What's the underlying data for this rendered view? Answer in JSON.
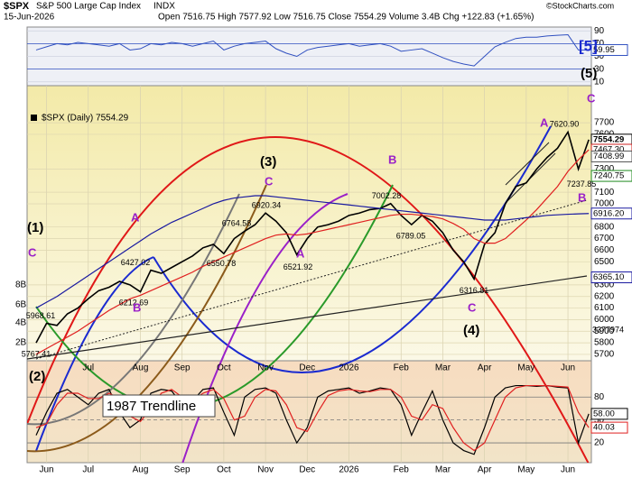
{
  "header": {
    "symbol": "$SPX",
    "name": "S&P 500 Large Cap Index",
    "exchange": "INDX",
    "date": "15-Jun-2026",
    "quote": "Open 7516.75 High 7577.92 Low 7516.75 Close 7554.29 Volume 3.4B Chg +122.83 (+1.65%)",
    "credit": "©StockCharts.com"
  },
  "chart_data": {
    "type": "line",
    "legend": "$SPX (Daily) 7554.29",
    "series": [
      {
        "color": "#000000",
        "values": [
          5800,
          5968,
          5950,
          6050,
          6100,
          6180,
          6250,
          6280,
          6330,
          6300,
          6240,
          6427,
          6400,
          6450,
          6500,
          6550,
          6620,
          6650,
          6570,
          6700,
          6764,
          6820,
          6920,
          6850,
          6750,
          6560,
          6700,
          6800,
          6820,
          6850,
          6900,
          6920,
          6950,
          6960,
          7002,
          6900,
          6820,
          6900,
          6850,
          6750,
          6600,
          6500,
          6350,
          6650,
          6750,
          7000,
          7150,
          7180,
          7300,
          7400,
          7480,
          7620,
          7300,
          7554
        ]
      },
      {
        "color": "#e02020",
        "values": [
          5700,
          5750,
          5800,
          5850,
          5900,
          5960,
          6020,
          6080,
          6130,
          6180,
          6210,
          6250,
          6290,
          6330,
          6370,
          6410,
          6460,
          6500,
          6540,
          6580,
          6620,
          6660,
          6700,
          6730,
          6740,
          6730,
          6740,
          6760,
          6780,
          6800,
          6820,
          6840,
          6860,
          6880,
          6900,
          6910,
          6910,
          6900,
          6890,
          6870,
          6830,
          6780,
          6700,
          6660,
          6660,
          6700,
          6780,
          6860,
          6950,
          7050,
          7150,
          7280,
          7380,
          7467
        ]
      },
      {
        "color": "#1a1aa0",
        "values": [
          6100,
          6150,
          6200,
          6260,
          6320,
          6380,
          6440,
          6500,
          6560,
          6620,
          6680,
          6740,
          6790,
          6840,
          6880,
          6920,
          6960,
          7000,
          7030,
          7050,
          7060,
          7070,
          7070,
          7060,
          7050,
          7040,
          7030,
          7020,
          7010,
          7000,
          6990,
          6980,
          6970,
          6960,
          6950,
          6940,
          6930,
          6920,
          6910,
          6900,
          6890,
          6880,
          6870,
          6860,
          6860,
          6860,
          6870,
          6880,
          6890,
          6900,
          6905,
          6910,
          6913,
          6916
        ]
      }
    ],
    "ylim": [
      5645,
      8020
    ],
    "yticks": [
      5700,
      5800,
      5900,
      6000,
      6100,
      6200,
      6300,
      6500,
      6600,
      6700,
      6800,
      7000,
      7100,
      7300,
      7600,
      7700
    ],
    "xticks": [
      {
        "value": 1,
        "label": "Jun"
      },
      {
        "value": 5,
        "label": "Jul"
      },
      {
        "value": 10,
        "label": "Aug"
      },
      {
        "value": 14,
        "label": "Sep"
      },
      {
        "value": 18,
        "label": "Oct"
      },
      {
        "value": 22,
        "label": "Nov"
      },
      {
        "value": 26,
        "label": "Dec"
      },
      {
        "value": 30,
        "label": "2026"
      },
      {
        "value": 35,
        "label": "Feb"
      },
      {
        "value": 39,
        "label": "Mar"
      },
      {
        "value": 43,
        "label": "Apr"
      },
      {
        "value": 47,
        "label": "May"
      },
      {
        "value": 51,
        "label": "Jun"
      }
    ],
    "grid": true,
    "price_labels": [
      {
        "value": 5767.41,
        "label": "5767.41"
      },
      {
        "value": 5968.61,
        "label": "5968.61"
      },
      {
        "value": 6427.02,
        "label": "6427.02"
      },
      {
        "value": 6212.69,
        "label": "6212.69"
      },
      {
        "value": 6764.58,
        "label": "6764.58"
      },
      {
        "value": 6550.78,
        "label": "6550.78"
      },
      {
        "value": 6920.34,
        "label": "6920.34"
      },
      {
        "value": 6521.92,
        "label": "6521.92"
      },
      {
        "value": 7002.28,
        "label": "7002.28"
      },
      {
        "value": 6789.05,
        "label": "6789.05"
      },
      {
        "value": 6316.81,
        "label": "6316.81"
      },
      {
        "value": 7620.9,
        "label": "7620.90"
      },
      {
        "value": 7237.85,
        "label": "7237.85"
      }
    ],
    "value_tags": [
      {
        "value": 7554.29,
        "label": "7554.29",
        "color": "#000000"
      },
      {
        "value": 7467.3,
        "label": "7467.30",
        "color": "#d02020"
      },
      {
        "value": 7408.99,
        "label": "7408.99",
        "color": "#555555"
      },
      {
        "value": 7240.75,
        "label": "7240.75",
        "color": "#1e8a1e"
      },
      {
        "value": 6916.2,
        "label": "6916.20",
        "color": "#1a1aa0"
      },
      {
        "value": 6365.1,
        "label": "6365.10",
        "color": "#1a1aa0"
      }
    ],
    "wave_labels": [
      "(1)",
      "C",
      "A",
      "B",
      "(3)",
      "C",
      "A",
      "B",
      "(4)",
      "C",
      "A",
      "B",
      "C",
      "[5]",
      "(5)",
      "(2)"
    ],
    "volume_ticks": [
      "8B",
      "6B",
      "4B",
      "2B"
    ],
    "volume_label": "3377974",
    "trendline_label": "1987 Trendline",
    "rsi": {
      "color": "#3050c0",
      "values": [
        60,
        65,
        70,
        68,
        72,
        70,
        68,
        66,
        70,
        60,
        62,
        70,
        68,
        72,
        70,
        66,
        70,
        74,
        60,
        66,
        70,
        72,
        74,
        62,
        55,
        50,
        60,
        64,
        66,
        68,
        70,
        66,
        68,
        70,
        66,
        58,
        60,
        62,
        55,
        48,
        42,
        38,
        35,
        50,
        65,
        72,
        78,
        80,
        80,
        82,
        83,
        84,
        60,
        59.95
      ],
      "ylim": [
        4,
        96
      ],
      "yticks": [
        90,
        70,
        50,
        30,
        10
      ],
      "tag": 59.95
    },
    "stoch": {
      "series": [
        {
          "color": "#000000",
          "values": [
            30,
            60,
            85,
            90,
            80,
            70,
            85,
            90,
            60,
            40,
            50,
            85,
            90,
            88,
            70,
            75,
            90,
            92,
            60,
            30,
            80,
            90,
            92,
            85,
            50,
            20,
            40,
            80,
            88,
            90,
            92,
            85,
            88,
            92,
            90,
            70,
            30,
            60,
            88,
            50,
            20,
            10,
            5,
            40,
            80,
            92,
            95,
            95,
            94,
            95,
            93,
            92,
            20,
            58
          ]
        },
        {
          "color": "#e02020",
          "values": [
            40,
            45,
            70,
            85,
            85,
            78,
            78,
            85,
            78,
            55,
            48,
            65,
            85,
            90,
            80,
            75,
            85,
            90,
            78,
            50,
            55,
            80,
            90,
            88,
            70,
            40,
            35,
            60,
            82,
            88,
            90,
            88,
            87,
            90,
            90,
            80,
            55,
            50,
            70,
            65,
            40,
            20,
            10,
            20,
            50,
            80,
            92,
            95,
            95,
            95,
            94,
            93,
            60,
            40.03
          ]
        }
      ],
      "ylim": [
        0,
        124
      ],
      "yticks": [
        80,
        50,
        20
      ],
      "tags": [
        {
          "value": 58,
          "label": "58.00"
        },
        {
          "value": 40.03,
          "label": "40.03"
        }
      ]
    }
  }
}
